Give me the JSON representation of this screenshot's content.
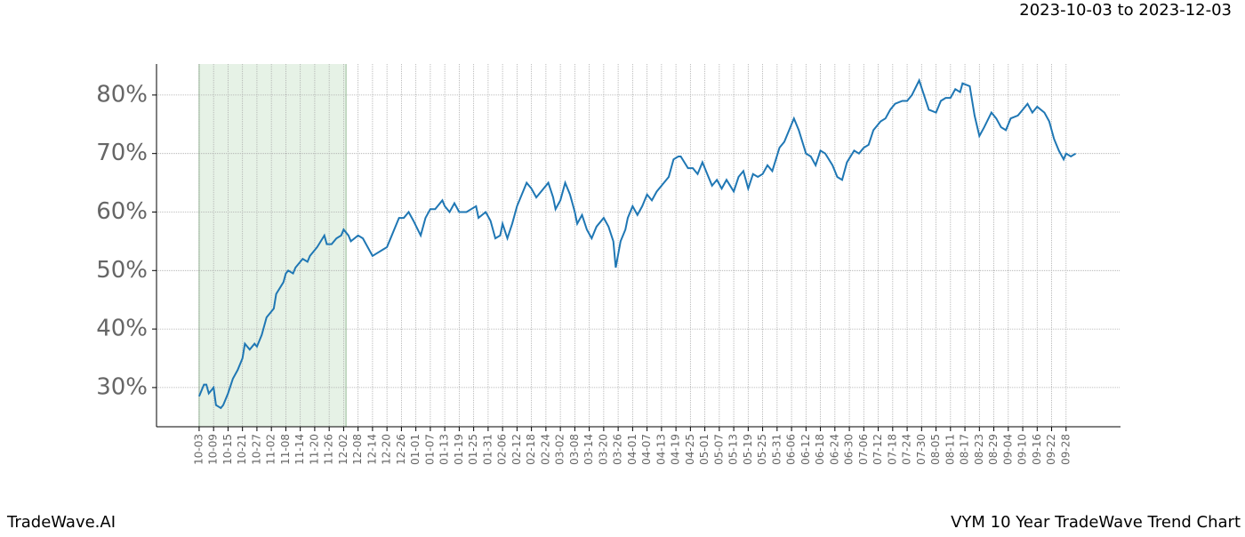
{
  "chart_data": {
    "type": "line",
    "subtitle": "2023-10-03 to 2023-12-03",
    "footer_left": "TradeWave.AI",
    "footer_right": "VYM 10 Year TradeWave Trend Chart",
    "highlight_range": [
      0,
      61
    ],
    "highlight_color": "#e6f2e6",
    "grid": true,
    "xlim": [
      -17.7,
      382.6
    ],
    "ylim": [
      23.3,
      85.3
    ],
    "yticks": [
      {
        "value": 30,
        "label": "30%"
      },
      {
        "value": 40,
        "label": "40%"
      },
      {
        "value": 50,
        "label": "50%"
      },
      {
        "value": 60,
        "label": "60%"
      },
      {
        "value": 70,
        "label": "70%"
      },
      {
        "value": 80,
        "label": "80%"
      }
    ],
    "xticks": [
      {
        "value": 0,
        "label": "10-03"
      },
      {
        "value": 6,
        "label": "10-09"
      },
      {
        "value": 12,
        "label": "10-15"
      },
      {
        "value": 18,
        "label": "10-21"
      },
      {
        "value": 24,
        "label": "10-27"
      },
      {
        "value": 30,
        "label": "11-02"
      },
      {
        "value": 36,
        "label": "11-08"
      },
      {
        "value": 42,
        "label": "11-14"
      },
      {
        "value": 48,
        "label": "11-20"
      },
      {
        "value": 54,
        "label": "11-26"
      },
      {
        "value": 60,
        "label": "12-02"
      },
      {
        "value": 66,
        "label": "12-08"
      },
      {
        "value": 72,
        "label": "12-14"
      },
      {
        "value": 78,
        "label": "12-20"
      },
      {
        "value": 84,
        "label": "12-26"
      },
      {
        "value": 90,
        "label": "01-01"
      },
      {
        "value": 96,
        "label": "01-07"
      },
      {
        "value": 102,
        "label": "01-13"
      },
      {
        "value": 108,
        "label": "01-19"
      },
      {
        "value": 114,
        "label": "01-25"
      },
      {
        "value": 120,
        "label": "01-31"
      },
      {
        "value": 126,
        "label": "02-06"
      },
      {
        "value": 132,
        "label": "02-12"
      },
      {
        "value": 138,
        "label": "02-18"
      },
      {
        "value": 144,
        "label": "02-24"
      },
      {
        "value": 150,
        "label": "03-02"
      },
      {
        "value": 156,
        "label": "03-08"
      },
      {
        "value": 162,
        "label": "03-14"
      },
      {
        "value": 168,
        "label": "03-20"
      },
      {
        "value": 174,
        "label": "03-26"
      },
      {
        "value": 180,
        "label": "04-01"
      },
      {
        "value": 186,
        "label": "04-07"
      },
      {
        "value": 192,
        "label": "04-13"
      },
      {
        "value": 198,
        "label": "04-19"
      },
      {
        "value": 204,
        "label": "04-25"
      },
      {
        "value": 210,
        "label": "05-01"
      },
      {
        "value": 216,
        "label": "05-07"
      },
      {
        "value": 222,
        "label": "05-13"
      },
      {
        "value": 228,
        "label": "05-19"
      },
      {
        "value": 234,
        "label": "05-25"
      },
      {
        "value": 240,
        "label": "05-31"
      },
      {
        "value": 246,
        "label": "06-06"
      },
      {
        "value": 252,
        "label": "06-12"
      },
      {
        "value": 258,
        "label": "06-18"
      },
      {
        "value": 264,
        "label": "06-24"
      },
      {
        "value": 270,
        "label": "06-30"
      },
      {
        "value": 276,
        "label": "07-06"
      },
      {
        "value": 282,
        "label": "07-12"
      },
      {
        "value": 288,
        "label": "07-18"
      },
      {
        "value": 294,
        "label": "07-24"
      },
      {
        "value": 300,
        "label": "07-30"
      },
      {
        "value": 306,
        "label": "08-05"
      },
      {
        "value": 312,
        "label": "08-11"
      },
      {
        "value": 318,
        "label": "08-17"
      },
      {
        "value": 324,
        "label": "08-23"
      },
      {
        "value": 330,
        "label": "08-29"
      },
      {
        "value": 336,
        "label": "09-04"
      },
      {
        "value": 342,
        "label": "09-10"
      },
      {
        "value": 348,
        "label": "09-16"
      },
      {
        "value": 354,
        "label": "09-22"
      },
      {
        "value": 360,
        "label": "09-28"
      }
    ],
    "x": [
      0,
      2,
      3,
      4,
      6,
      7,
      9,
      10,
      12,
      14,
      16,
      18,
      19,
      21,
      23,
      24,
      26,
      28,
      30,
      31,
      32,
      35,
      36,
      37,
      39,
      40,
      43,
      45,
      46,
      49,
      52,
      53,
      55,
      57,
      59,
      60,
      62,
      63,
      66,
      68,
      70,
      72,
      74,
      76,
      78,
      80,
      83,
      85,
      87,
      89,
      92,
      94,
      96,
      98,
      101,
      102,
      104,
      106,
      108,
      111,
      113,
      115,
      116,
      119,
      121,
      123,
      125,
      126,
      128,
      130,
      132,
      134,
      136,
      138,
      140,
      142,
      145,
      147,
      148,
      150,
      152,
      154,
      156,
      157,
      159,
      161,
      163,
      165,
      168,
      170,
      172,
      173,
      175,
      177,
      178,
      180,
      182,
      184,
      186,
      188,
      190,
      192,
      195,
      197,
      199,
      200,
      203,
      205,
      207,
      209,
      211,
      213,
      215,
      217,
      219,
      222,
      224,
      226,
      228,
      230,
      232,
      234,
      236,
      238,
      241,
      243,
      245,
      247,
      249,
      252,
      254,
      256,
      258,
      260,
      263,
      265,
      267,
      269,
      272,
      274,
      276,
      278,
      280,
      283,
      285,
      287,
      289,
      292,
      294,
      296,
      299,
      301,
      303,
      306,
      308,
      310,
      312,
      314,
      316,
      317,
      320,
      322,
      324,
      326,
      329,
      331,
      333,
      335,
      337,
      340,
      342,
      344,
      346,
      348,
      351,
      353,
      355,
      357,
      359,
      360,
      362,
      364
    ],
    "series": [
      {
        "color": "#1f77b4",
        "values": [
          28.5,
          30.5,
          30.5,
          29,
          30,
          27,
          26.5,
          27,
          29,
          31.5,
          33,
          35,
          37.5,
          36.5,
          37.5,
          37,
          39,
          42,
          43,
          43.5,
          46,
          48,
          49.5,
          50,
          49.5,
          50.5,
          52,
          51.5,
          52.5,
          54,
          56,
          54.5,
          54.5,
          55.5,
          56,
          57,
          56,
          55,
          56,
          55.5,
          54,
          52.5,
          53,
          53.5,
          54,
          56,
          59,
          59,
          60,
          58.5,
          56,
          59,
          60.5,
          60.5,
          62,
          61,
          60,
          61.5,
          60,
          60,
          60.5,
          61,
          59,
          60,
          58.5,
          55.5,
          56,
          58,
          55.5,
          58,
          61,
          63,
          65,
          64,
          62.5,
          63.5,
          65,
          62.5,
          60.5,
          62,
          65,
          63,
          60,
          58,
          59.5,
          57,
          55.5,
          57.5,
          59,
          57.5,
          55,
          50.5,
          55,
          57,
          59,
          61,
          59.5,
          61,
          63,
          62,
          63.5,
          64.5,
          66,
          69,
          69.5,
          69.5,
          67.5,
          67.5,
          66.5,
          68.5,
          66.5,
          64.5,
          65.5,
          64,
          65.5,
          63.5,
          66,
          67,
          64,
          66.5,
          66,
          66.5,
          68,
          67,
          71,
          72,
          74,
          76,
          74,
          70,
          69.5,
          68,
          70.5,
          70,
          68,
          66,
          65.5,
          68.5,
          70.5,
          70,
          71,
          71.5,
          74,
          75.5,
          76,
          77.5,
          78.5,
          79,
          79,
          80,
          82.5,
          80,
          77.5,
          77,
          79,
          79.5,
          79.5,
          81,
          80.5,
          82,
          81.5,
          76.5,
          73,
          74.5,
          77,
          76,
          74.5,
          74,
          76,
          76.5,
          77.5,
          78.5,
          77,
          78,
          77,
          75.5,
          72.5,
          70.5,
          69,
          70,
          69.5,
          70
        ]
      }
    ]
  }
}
